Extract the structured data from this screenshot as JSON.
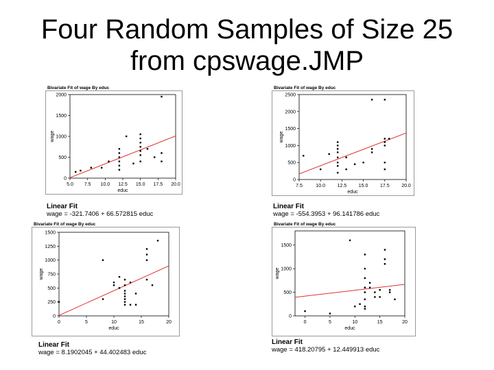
{
  "page": {
    "title_line1": "Four Random Samples of Size 25",
    "title_line2": "from cpswage.JMP"
  },
  "colors": {
    "point": "#000000",
    "fit_line": "#e03030",
    "frame": "#000000",
    "inner_frame": "#999999"
  },
  "chart_data": [
    {
      "type": "scatter",
      "title": "Bivariate Fit of wage By educ",
      "xlabel": "educ",
      "ylabel": "wage",
      "xlim": [
        5,
        20
      ],
      "ylim": [
        0,
        2000
      ],
      "xticks": [
        "5.0",
        "7.5",
        "10.0",
        "12.5",
        "15.0",
        "17.5",
        "20.0"
      ],
      "yticks": [
        "0",
        "500",
        "1000",
        "1500",
        "2000"
      ],
      "xtick_values": [
        5,
        7.5,
        10,
        12.5,
        15,
        17.5,
        20
      ],
      "ytick_values": [
        0,
        500,
        1000,
        1500,
        2000
      ],
      "points": [
        [
          5.8,
          150
        ],
        [
          6.5,
          180
        ],
        [
          8,
          250
        ],
        [
          9.5,
          250
        ],
        [
          10.5,
          400
        ],
        [
          12,
          300
        ],
        [
          12,
          400
        ],
        [
          12,
          500
        ],
        [
          12,
          600
        ],
        [
          12,
          700
        ],
        [
          13,
          1000
        ],
        [
          15,
          400
        ],
        [
          15,
          550
        ],
        [
          15,
          650
        ],
        [
          15,
          750
        ],
        [
          15,
          850
        ],
        [
          15,
          950
        ],
        [
          15,
          1050
        ],
        [
          16,
          700
        ],
        [
          17,
          500
        ],
        [
          18,
          600
        ],
        [
          18,
          400
        ],
        [
          18,
          1950
        ],
        [
          12,
          200
        ],
        [
          14,
          350
        ]
      ],
      "fit_line": {
        "intercept": -321.7406,
        "slope": 66.572815,
        "x_range": [
          5,
          20
        ]
      },
      "fit_label": "Linear Fit",
      "fit_equation": "wage = -321.7406 + 66.572815 educ"
    },
    {
      "type": "scatter",
      "title": "Bivariate Fit of wage By educ",
      "xlabel": "educ",
      "ylabel": "wage",
      "xlim": [
        7.5,
        20
      ],
      "ylim": [
        0,
        2500
      ],
      "xticks": [
        "7.5",
        "10.0",
        "12.5",
        "15.0",
        "17.5",
        "20.0"
      ],
      "yticks": [
        "0",
        "500",
        "1000",
        "1500",
        "2000",
        "2500"
      ],
      "xtick_values": [
        7.5,
        10,
        12.5,
        15,
        17.5,
        20
      ],
      "ytick_values": [
        0,
        500,
        1000,
        1500,
        2000,
        2500
      ],
      "points": [
        [
          8,
          700
        ],
        [
          10,
          300
        ],
        [
          11,
          750
        ],
        [
          12,
          200
        ],
        [
          12,
          400
        ],
        [
          12,
          500
        ],
        [
          12,
          650
        ],
        [
          12,
          800
        ],
        [
          12,
          900
        ],
        [
          12,
          1000
        ],
        [
          12,
          1100
        ],
        [
          13,
          300
        ],
        [
          13,
          650
        ],
        [
          14,
          450
        ],
        [
          15,
          500
        ],
        [
          16,
          800
        ],
        [
          16,
          900
        ],
        [
          16,
          2350
        ],
        [
          17.5,
          300
        ],
        [
          17.5,
          500
        ],
        [
          17.5,
          1000
        ],
        [
          17.5,
          1100
        ],
        [
          17.5,
          1200
        ],
        [
          17.5,
          2350
        ],
        [
          18,
          1200
        ]
      ],
      "fit_line": {
        "intercept": -554.3953,
        "slope": 96.141786,
        "x_range": [
          7.5,
          20
        ]
      },
      "fit_label": "Linear Fit",
      "fit_equation": "wage = -554.3953 + 96.141786 educ"
    },
    {
      "type": "scatter",
      "title": "Bivariate Fit of wage By educ",
      "xlabel": "educ",
      "ylabel": "wage",
      "xlim": [
        0,
        20
      ],
      "ylim": [
        0,
        1500
      ],
      "xticks": [
        "0",
        "5",
        "10",
        "15",
        "20"
      ],
      "yticks": [
        "0",
        "250",
        "500",
        "750",
        "1000",
        "1250",
        "1500"
      ],
      "xtick_values": [
        0,
        5,
        10,
        15,
        20
      ],
      "ytick_values": [
        0,
        250,
        500,
        750,
        1000,
        1250,
        1500
      ],
      "points": [
        [
          0,
          250
        ],
        [
          8,
          1000
        ],
        [
          8,
          300
        ],
        [
          10,
          550
        ],
        [
          11,
          700
        ],
        [
          11,
          500
        ],
        [
          12,
          200
        ],
        [
          12,
          300
        ],
        [
          12,
          350
        ],
        [
          12,
          400
        ],
        [
          12,
          450
        ],
        [
          12,
          550
        ],
        [
          12,
          650
        ],
        [
          13,
          200
        ],
        [
          13,
          600
        ],
        [
          14,
          200
        ],
        [
          14,
          400
        ],
        [
          16,
          1200
        ],
        [
          16,
          1100
        ],
        [
          16,
          1000
        ],
        [
          16,
          650
        ],
        [
          17,
          550
        ],
        [
          18,
          1350
        ],
        [
          12,
          250
        ],
        [
          10,
          600
        ]
      ],
      "fit_line": {
        "intercept": 8.1902045,
        "slope": 44.402483,
        "x_range": [
          0,
          20
        ]
      },
      "fit_label": "Linear Fit",
      "fit_equation": "wage = 8.1902045 + 44.402483 educ"
    },
    {
      "type": "scatter",
      "title": "Bivariate Fit of wage By educ",
      "xlabel": "educ",
      "ylabel": "wage",
      "xlim": [
        -2,
        20
      ],
      "ylim": [
        0,
        1800
      ],
      "xticks": [
        "0",
        "5",
        "10",
        "15",
        "20"
      ],
      "yticks": [
        "0",
        "500",
        "1000",
        "1500"
      ],
      "xtick_values": [
        0,
        5,
        10,
        15,
        20
      ],
      "ytick_values": [
        0,
        500,
        1000,
        1500
      ],
      "points": [
        [
          0,
          100
        ],
        [
          5,
          50
        ],
        [
          9,
          1600
        ],
        [
          10,
          200
        ],
        [
          11,
          250
        ],
        [
          12,
          200
        ],
        [
          12,
          350
        ],
        [
          12,
          500
        ],
        [
          12,
          600
        ],
        [
          12,
          800
        ],
        [
          12,
          1000
        ],
        [
          12,
          1300
        ],
        [
          13,
          700
        ],
        [
          13,
          600
        ],
        [
          14,
          400
        ],
        [
          14,
          500
        ],
        [
          15,
          400
        ],
        [
          15,
          550
        ],
        [
          16,
          1400
        ],
        [
          16,
          1200
        ],
        [
          16,
          1100
        ],
        [
          17,
          550
        ],
        [
          17,
          500
        ],
        [
          18,
          350
        ],
        [
          12,
          150
        ]
      ],
      "fit_line": {
        "intercept": 418.20795,
        "slope": 12.449913,
        "x_range": [
          -2,
          20
        ]
      },
      "fit_label": "Linear Fit",
      "fit_equation": "wage = 418.20795 + 12.449913 educ"
    }
  ]
}
